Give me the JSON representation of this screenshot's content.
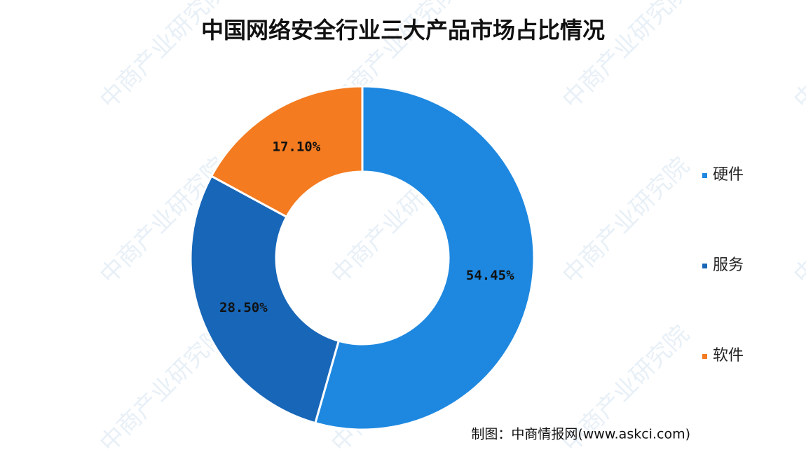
{
  "chart_data": {
    "type": "donut",
    "title": "中国网络安全行业三大产品市场占比情况",
    "categories": [
      "硬件",
      "服务",
      "软件"
    ],
    "values": [
      54.45,
      28.5,
      17.1
    ],
    "value_labels": [
      "54.45%",
      "28.50%",
      "17.10%"
    ],
    "colors": [
      "#1e88e0",
      "#1766b8",
      "#f47b20"
    ],
    "legend": "right",
    "source": "制图：中商情报网(www.askci.com)",
    "watermark": "中商产业研究院"
  }
}
